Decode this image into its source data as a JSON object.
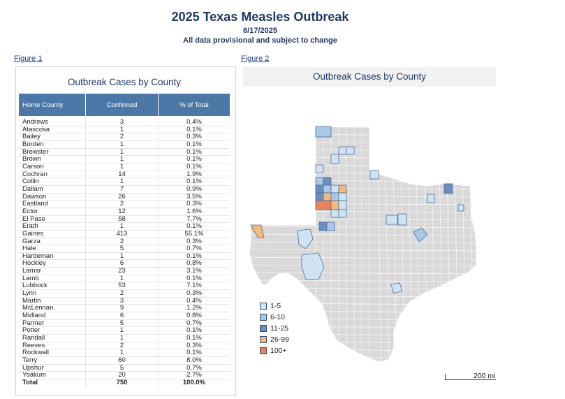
{
  "header": {
    "title": "2025 Texas Measles Outbreak",
    "date": "6/17/2025",
    "note": "All data provisional and subject to change"
  },
  "figure1": {
    "link": "Figure 1",
    "title": "Outbreak Cases by County",
    "columns": [
      "Home County",
      "Confirmed",
      "% of Total"
    ],
    "rows": [
      [
        "Andrews",
        "3",
        "0.4%"
      ],
      [
        "Atascosa",
        "1",
        "0.1%"
      ],
      [
        "Bailey",
        "2",
        "0.3%"
      ],
      [
        "Borden",
        "1",
        "0.1%"
      ],
      [
        "Brewster",
        "1",
        "0.1%"
      ],
      [
        "Brown",
        "1",
        "0.1%"
      ],
      [
        "Carson",
        "1",
        "0.1%"
      ],
      [
        "Cochran",
        "14",
        "1.9%"
      ],
      [
        "Collin",
        "1",
        "0.1%"
      ],
      [
        "Dallam",
        "7",
        "0.9%"
      ],
      [
        "Dawson",
        "26",
        "3.5%"
      ],
      [
        "Eastland",
        "2",
        "0.3%"
      ],
      [
        "Ector",
        "12",
        "1.6%"
      ],
      [
        "El Paso",
        "58",
        "7.7%"
      ],
      [
        "Erath",
        "1",
        "0.1%"
      ],
      [
        "Gaines",
        "413",
        "55.1%"
      ],
      [
        "Garza",
        "2",
        "0.3%"
      ],
      [
        "Hale",
        "5",
        "0.7%"
      ],
      [
        "Hardeman",
        "1",
        "0.1%"
      ],
      [
        "Hockley",
        "6",
        "0.8%"
      ],
      [
        "Lamar",
        "23",
        "3.1%"
      ],
      [
        "Lamb",
        "1",
        "0.1%"
      ],
      [
        "Lubbock",
        "53",
        "7.1%"
      ],
      [
        "Lynn",
        "2",
        "0.3%"
      ],
      [
        "Martin",
        "3",
        "0.4%"
      ],
      [
        "McLennan",
        "9",
        "1.2%"
      ],
      [
        "Midland",
        "6",
        "0.8%"
      ],
      [
        "Parmer",
        "5",
        "0.7%"
      ],
      [
        "Potter",
        "1",
        "0.1%"
      ],
      [
        "Randall",
        "1",
        "0.1%"
      ],
      [
        "Reeves",
        "2",
        "0.3%"
      ],
      [
        "Rockwall",
        "1",
        "0.1%"
      ],
      [
        "Terry",
        "60",
        "8.0%"
      ],
      [
        "Upshur",
        "5",
        "0.7%"
      ],
      [
        "Yoakum",
        "20",
        "2.7%"
      ]
    ],
    "total": [
      "Total",
      "750",
      "100.0%"
    ]
  },
  "figure2": {
    "link": "Figure 2",
    "title": "Outbreak Cases by County",
    "colors": {
      "map_fill": "#d9d9d9",
      "county_line": "#ffffff",
      "c1_5": "#cfe3f3",
      "c6_10": "#a8c8e6",
      "c11_25": "#6a8fbf",
      "c26_99": "#f5b97a",
      "c100plus": "#e8825a"
    },
    "legend": [
      {
        "label": "1-5",
        "color": "#cfe3f3"
      },
      {
        "label": "6-10",
        "color": "#a8c8e6"
      },
      {
        "label": "11-25",
        "color": "#6a8fbf"
      },
      {
        "label": "26-99",
        "color": "#f5b97a"
      },
      {
        "label": "100+",
        "color": "#e8825a"
      }
    ],
    "scale_label": "200 mi"
  }
}
